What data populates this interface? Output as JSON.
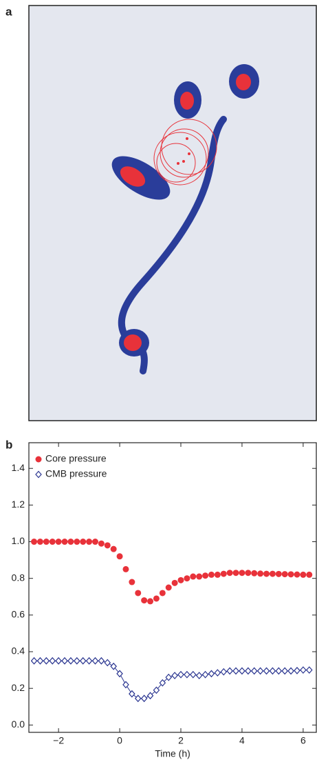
{
  "panel_labels": [
    "a",
    "b"
  ],
  "chart_data": {
    "type": "scatter",
    "x_label": "Time (h)",
    "x": [
      -2.8,
      -2.6,
      -2.4,
      -2.2,
      -2.0,
      -1.8,
      -1.6,
      -1.4,
      -1.2,
      -1.0,
      -0.8,
      -0.6,
      -0.4,
      -0.2,
      0.0,
      0.2,
      0.4,
      0.6,
      0.8,
      1.0,
      1.2,
      1.4,
      1.6,
      1.8,
      2.0,
      2.2,
      2.4,
      2.6,
      2.8,
      3.0,
      3.2,
      3.4,
      3.6,
      3.8,
      4.0,
      4.2,
      4.4,
      4.6,
      4.8,
      5.0,
      5.2,
      5.4,
      5.6,
      5.8,
      6.0,
      6.2
    ],
    "series": [
      {
        "name": "Core pressure",
        "color": "#e8323a",
        "marker": "circle",
        "values": [
          1.0,
          1.0,
          1.0,
          1.0,
          1.0,
          1.0,
          1.0,
          1.0,
          1.0,
          1.0,
          1.0,
          0.99,
          0.98,
          0.96,
          0.92,
          0.85,
          0.78,
          0.72,
          0.68,
          0.675,
          0.69,
          0.72,
          0.75,
          0.775,
          0.79,
          0.8,
          0.81,
          0.81,
          0.815,
          0.82,
          0.82,
          0.825,
          0.83,
          0.83,
          0.83,
          0.83,
          0.828,
          0.826,
          0.825,
          0.825,
          0.824,
          0.823,
          0.822,
          0.821,
          0.82,
          0.82
        ]
      },
      {
        "name": "CMB pressure",
        "color": "#2a3590",
        "marker": "diamond",
        "values": [
          0.35,
          0.35,
          0.35,
          0.35,
          0.35,
          0.35,
          0.35,
          0.35,
          0.35,
          0.35,
          0.35,
          0.35,
          0.34,
          0.32,
          0.28,
          0.22,
          0.17,
          0.145,
          0.145,
          0.16,
          0.19,
          0.23,
          0.26,
          0.27,
          0.275,
          0.275,
          0.275,
          0.27,
          0.275,
          0.28,
          0.285,
          0.29,
          0.295,
          0.295,
          0.295,
          0.295,
          0.295,
          0.295,
          0.295,
          0.295,
          0.295,
          0.295,
          0.295,
          0.297,
          0.3,
          0.3
        ]
      }
    ],
    "xlim": [
      -2.97,
      6.43
    ],
    "xticks": [
      {
        "value": -2,
        "label": "−2"
      },
      0,
      2,
      4,
      6
    ],
    "ylim": [
      -0.04,
      1.54
    ],
    "yticks": [
      {
        "value": 0,
        "label": "0.0"
      },
      0.2,
      0.4,
      0.6,
      0.8,
      {
        "value": 1,
        "label": "1.0"
      },
      1.2,
      1.4
    ],
    "legend": "upper-left",
    "grid": false
  }
}
